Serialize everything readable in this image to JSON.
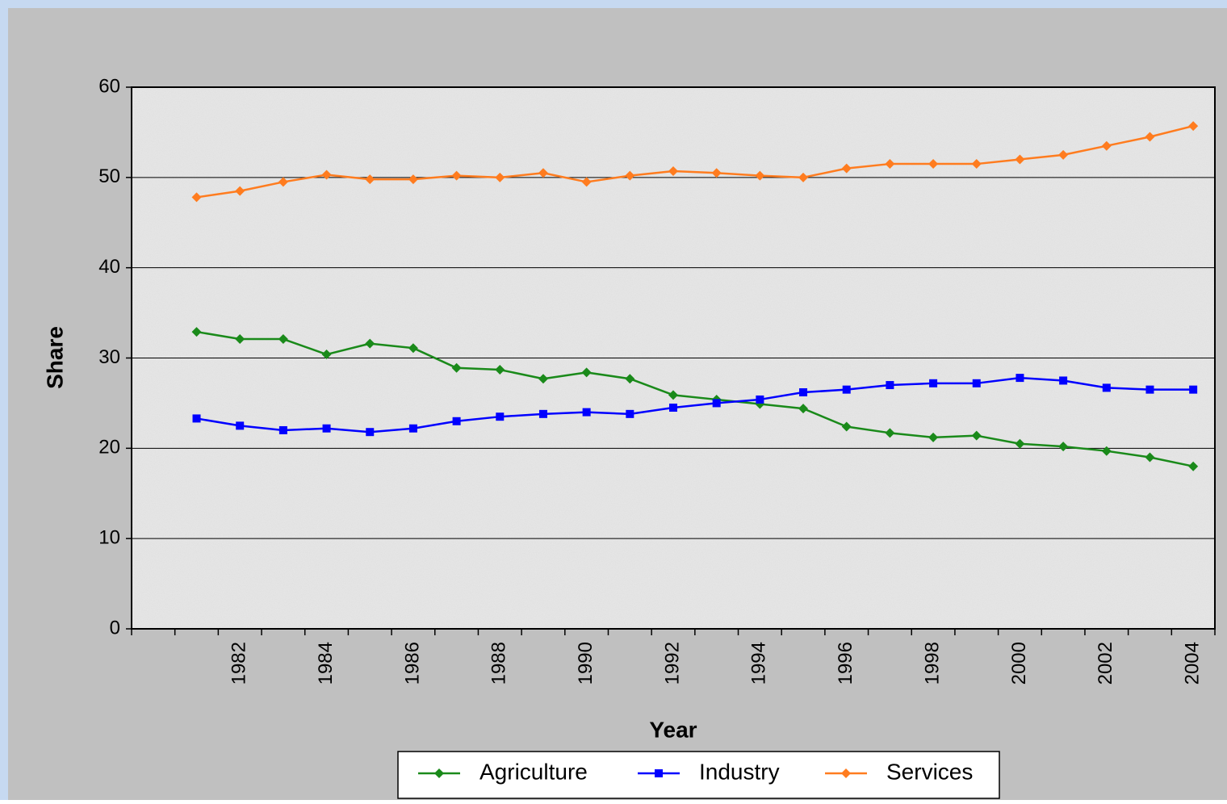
{
  "chart_data": {
    "type": "line",
    "x_label": "Year",
    "y_label": "Share",
    "categories": [
      null,
      null,
      "1982",
      null,
      "1984",
      null,
      "1986",
      null,
      "1988",
      null,
      "1990",
      null,
      "1992",
      null,
      "1994",
      null,
      "1996",
      null,
      "1998",
      null,
      "2000",
      null,
      "2002",
      null,
      "2004"
    ],
    "series": [
      {
        "name": "Agriculture",
        "color": "#1a8a1a",
        "marker": "diamond",
        "values": [
          null,
          32.9,
          32.1,
          32.1,
          30.4,
          31.6,
          31.1,
          28.9,
          28.7,
          27.7,
          28.4,
          27.7,
          25.9,
          25.4,
          24.9,
          24.4,
          22.4,
          21.7,
          21.2,
          21.4,
          20.5,
          20.2,
          19.7,
          19.0,
          18.0
        ]
      },
      {
        "name": "Industry",
        "color": "#0000ff",
        "marker": "square",
        "values": [
          null,
          23.3,
          22.5,
          22.0,
          22.2,
          21.8,
          22.2,
          23.0,
          23.5,
          23.8,
          24.0,
          23.8,
          24.5,
          25.0,
          25.4,
          26.2,
          26.5,
          27.0,
          27.2,
          27.2,
          27.8,
          27.5,
          26.7,
          26.5,
          26.5
        ]
      },
      {
        "name": "Services",
        "color": "#ff7c1f",
        "marker": "diamond",
        "values": [
          null,
          47.8,
          48.5,
          49.5,
          50.3,
          49.8,
          49.8,
          50.2,
          50.0,
          50.5,
          49.5,
          50.2,
          50.7,
          50.5,
          50.2,
          50.0,
          51.0,
          51.5,
          51.5,
          51.5,
          52.0,
          52.5,
          53.5,
          54.5,
          55.7
        ]
      }
    ],
    "ylim": [
      0,
      60
    ],
    "yticks": [
      0,
      10,
      20,
      30,
      40,
      50,
      60
    ],
    "grid": true,
    "legend": "bottom"
  }
}
